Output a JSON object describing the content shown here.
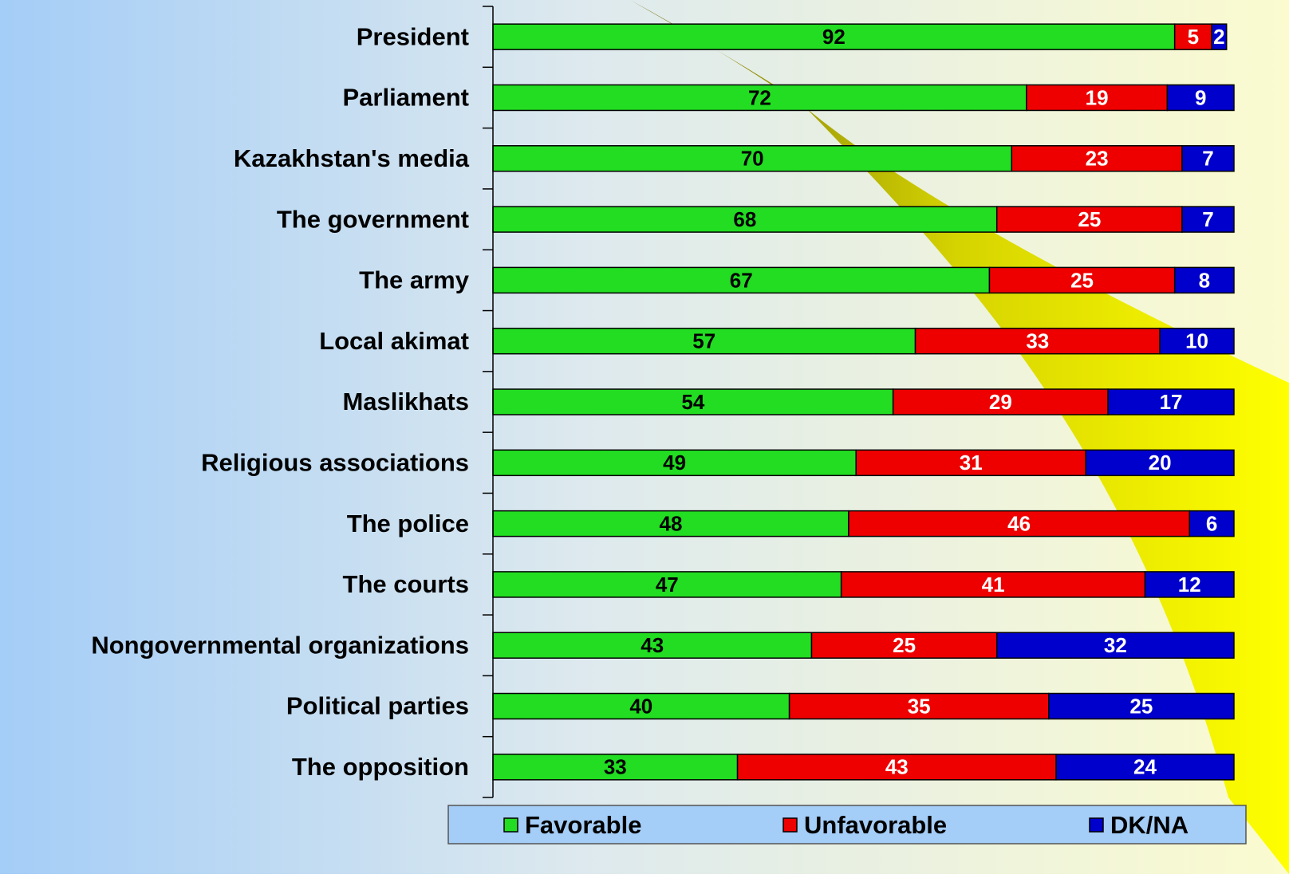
{
  "chart_data": {
    "type": "stacked-bar-horizontal",
    "categories": [
      "President",
      "Parliament",
      "Kazakhstan's media",
      "The government",
      "The army",
      "Local akimat",
      "Maslikhats",
      "Religious associations",
      "The police",
      "The courts",
      "Nongovernmental organizations",
      "Political parties",
      "The opposition"
    ],
    "series": [
      {
        "name": "Favorable",
        "color": "#22dd22",
        "label_color": "#000000",
        "values": [
          92,
          72,
          70,
          68,
          67,
          57,
          54,
          49,
          48,
          47,
          43,
          40,
          33
        ]
      },
      {
        "name": "Unfavorable",
        "color": "#ee0000",
        "label_color": "#ffffff",
        "values": [
          5,
          19,
          23,
          25,
          25,
          33,
          29,
          31,
          46,
          41,
          25,
          35,
          43
        ]
      },
      {
        "name": "DK/NA",
        "color": "#0000cc",
        "label_color": "#ffffff",
        "values": [
          2,
          9,
          7,
          7,
          8,
          10,
          17,
          20,
          6,
          12,
          32,
          25,
          24
        ]
      }
    ],
    "xlim": [
      0,
      100
    ]
  }
}
